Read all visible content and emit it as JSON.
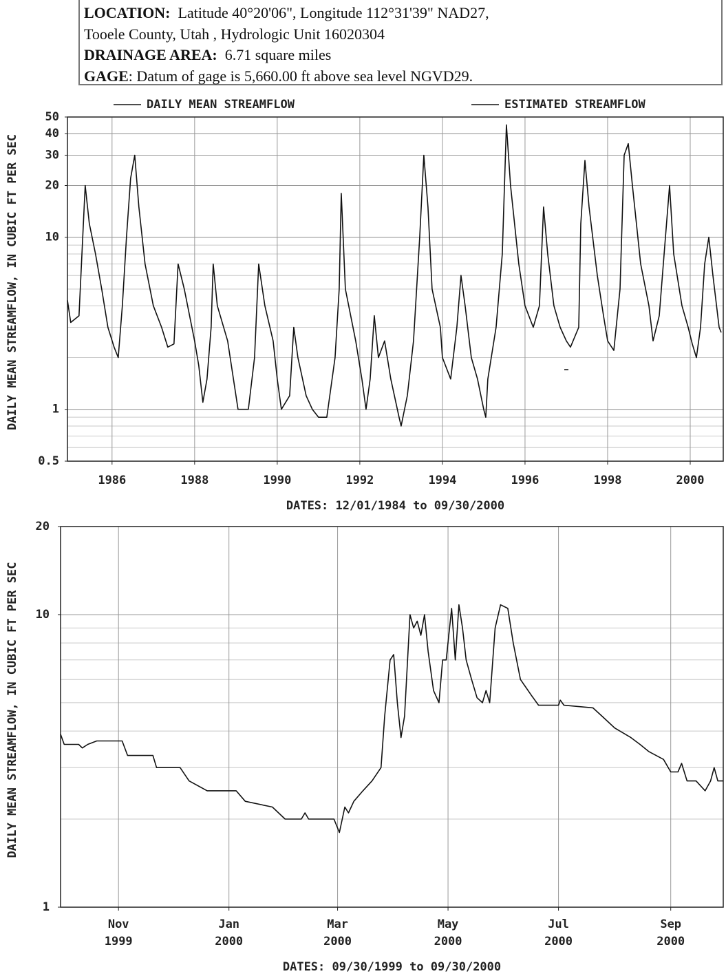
{
  "header": {
    "location_label": "LOCATION:",
    "location": "Latitude 40°20'06\", Longitude 112°31'39\" NAD27,",
    "location_cont": "Tooele County, Utah , Hydrologic Unit 16020304",
    "drainage_label": "DRAINAGE AREA:",
    "drainage": "6.71 square miles",
    "gage_label": "GAGE",
    "gage": ": Datum of gage is 5,660.00 ft above sea level NGVD29."
  },
  "chart_data": [
    {
      "type": "line",
      "y_label": "DAILY MEAN STREAMFLOW, IN CUBIC FT PER SEC",
      "x_label": "DATES: 12/01/1984 to 09/30/2000",
      "log_y": true,
      "grid": true,
      "legend": "top",
      "xlim": [
        1984.92,
        2000.8
      ],
      "xticks": [
        1986,
        1988,
        1990,
        1992,
        1994,
        1996,
        1998,
        2000
      ],
      "ylim": [
        0.5,
        50
      ],
      "yticks": [
        0.5,
        1,
        10,
        20,
        30,
        40,
        50
      ],
      "series": [
        {
          "name": "DAILY MEAN STREAMFLOW",
          "color": "#111111",
          "x": [
            1984.92,
            1985.0,
            1985.2,
            1985.35,
            1985.45,
            1985.6,
            1985.75,
            1985.9,
            1986.05,
            1986.15,
            1986.25,
            1986.35,
            1986.45,
            1986.55,
            1986.65,
            1986.8,
            1987.0,
            1987.2,
            1987.35,
            1987.5,
            1987.6,
            1987.75,
            1988.0,
            1988.1,
            1988.2,
            1988.3,
            1988.4,
            1988.45,
            1988.55,
            1988.8,
            1989.0,
            1989.05,
            1989.3,
            1989.45,
            1989.55,
            1989.7,
            1989.9,
            1990.0,
            1990.1,
            1990.3,
            1990.4,
            1990.5,
            1990.7,
            1990.85,
            1991.0,
            1991.2,
            1991.4,
            1991.5,
            1991.55,
            1991.65,
            1991.9,
            1992.05,
            1992.15,
            1992.25,
            1992.35,
            1992.45,
            1992.6,
            1992.75,
            1992.95,
            1993.0,
            1993.15,
            1993.3,
            1993.45,
            1993.55,
            1993.65,
            1993.75,
            1993.95,
            1994.0,
            1994.2,
            1994.35,
            1994.45,
            1994.55,
            1994.7,
            1994.85,
            1995.0,
            1995.05,
            1995.1,
            1995.3,
            1995.45,
            1995.55,
            1995.65,
            1995.85,
            1996.0,
            1996.2,
            1996.35,
            1996.45,
            1996.55,
            1996.7,
            1996.85,
            1997.0,
            1997.1,
            1997.3,
            1997.35,
            1997.45,
            1997.55,
            1997.75,
            1997.9,
            1998.0,
            1998.15,
            1998.3,
            1998.4,
            1998.5,
            1998.6,
            1998.8,
            1999.0,
            1999.1,
            1999.25,
            1999.4,
            1999.5,
            1999.6,
            1999.8,
            1999.95,
            2000.05,
            2000.15,
            2000.25,
            2000.35,
            2000.45,
            2000.55,
            2000.7,
            2000.75
          ],
          "values": [
            4.3,
            3.2,
            3.5,
            20,
            12,
            8,
            5,
            3.0,
            2.3,
            2.0,
            4,
            10,
            22,
            30,
            15,
            7,
            4,
            3,
            2.3,
            2.4,
            7,
            5,
            2.5,
            1.8,
            1.1,
            1.5,
            3,
            7,
            4,
            2.5,
            1.2,
            1.0,
            1.0,
            2,
            7,
            4,
            2.5,
            1.5,
            1.0,
            1.2,
            3,
            2,
            1.2,
            1.0,
            0.9,
            0.9,
            2,
            5,
            18,
            5,
            2.5,
            1.5,
            1.0,
            1.5,
            3.5,
            2,
            2.5,
            1.5,
            0.9,
            0.8,
            1.2,
            2.5,
            10,
            30,
            15,
            5,
            3,
            2,
            1.5,
            3,
            6,
            4,
            2,
            1.5,
            1.0,
            0.9,
            1.5,
            3,
            8,
            45,
            20,
            7,
            4,
            3,
            4,
            15,
            8,
            4,
            3,
            2.5,
            2.3,
            3,
            12,
            28,
            15,
            6,
            3.5,
            2.5,
            2.2,
            5,
            30,
            35,
            20,
            7,
            4,
            2.5,
            3.5,
            10,
            20,
            8,
            4,
            3,
            2.4,
            2.0,
            3,
            7,
            10,
            6,
            3,
            2.8
          ]
        },
        {
          "name": "ESTIMATED STREAMFLOW",
          "color": "#111111",
          "x": [
            1996.95,
            1997.05
          ],
          "values": [
            1.7,
            1.7
          ]
        }
      ]
    },
    {
      "type": "line",
      "y_label": "DAILY MEAN STREAMFLOW, IN CUBIC FT PER SEC",
      "x_label": "DATES: 09/30/1999 to 09/30/2000",
      "log_y": true,
      "grid": true,
      "color": "#111111",
      "xlim": [
        "1999-09-30",
        "2000-09-30"
      ],
      "xticks": [
        {
          "value": "1999-11-01",
          "label": [
            "Nov",
            "1999"
          ]
        },
        {
          "value": "2000-01-01",
          "label": [
            "Jan",
            "2000"
          ]
        },
        {
          "value": "2000-03-01",
          "label": [
            "Mar",
            "2000"
          ]
        },
        {
          "value": "2000-05-01",
          "label": [
            "May",
            "2000"
          ]
        },
        {
          "value": "2000-07-01",
          "label": [
            "Jul",
            "2000"
          ]
        },
        {
          "value": "2000-09-01",
          "label": [
            "Sep",
            "2000"
          ]
        }
      ],
      "ylim": [
        1,
        20
      ],
      "yticks": [
        1,
        10,
        20
      ],
      "x": [
        "1999-09-30",
        "1999-10-02",
        "1999-10-10",
        "1999-10-12",
        "1999-10-15",
        "1999-10-20",
        "1999-10-28",
        "1999-11-03",
        "1999-11-06",
        "1999-11-20",
        "1999-11-22",
        "1999-12-05",
        "1999-12-10",
        "1999-12-20",
        "2000-01-05",
        "2000-01-10",
        "2000-01-25",
        "2000-02-01",
        "2000-02-10",
        "2000-02-12",
        "2000-02-14",
        "2000-02-28",
        "2000-03-02",
        "2000-03-05",
        "2000-03-07",
        "2000-03-10",
        "2000-03-15",
        "2000-03-20",
        "2000-03-25",
        "2000-03-27",
        "2000-03-30",
        "2000-04-01",
        "2000-04-03",
        "2000-04-05",
        "2000-04-07",
        "2000-04-10",
        "2000-04-12",
        "2000-04-14",
        "2000-04-16",
        "2000-04-18",
        "2000-04-20",
        "2000-04-23",
        "2000-04-26",
        "2000-04-28",
        "2000-04-30",
        "2000-05-03",
        "2000-05-05",
        "2000-05-07",
        "2000-05-09",
        "2000-05-11",
        "2000-05-14",
        "2000-05-17",
        "2000-05-20",
        "2000-05-22",
        "2000-05-24",
        "2000-05-27",
        "2000-05-30",
        "2000-06-03",
        "2000-06-06",
        "2000-06-10",
        "2000-06-16",
        "2000-06-20",
        "2000-07-01",
        "2000-07-02",
        "2000-07-04",
        "2000-07-20",
        "2000-07-25",
        "2000-08-01",
        "2000-08-10",
        "2000-08-15",
        "2000-08-20",
        "2000-08-28",
        "2000-09-01",
        "2000-09-05",
        "2000-09-07",
        "2000-09-10",
        "2000-09-15",
        "2000-09-20",
        "2000-09-23",
        "2000-09-25",
        "2000-09-27",
        "2000-09-30"
      ],
      "values": [
        3.9,
        3.6,
        3.6,
        3.5,
        3.6,
        3.7,
        3.7,
        3.7,
        3.3,
        3.3,
        3.0,
        3.0,
        2.7,
        2.5,
        2.5,
        2.3,
        2.2,
        2.0,
        2.0,
        2.1,
        2.0,
        2.0,
        1.8,
        2.2,
        2.1,
        2.3,
        2.5,
        2.7,
        3.0,
        4.5,
        7,
        7.3,
        5,
        3.8,
        4.5,
        10,
        9,
        9.5,
        8.5,
        10,
        7.5,
        5.5,
        5,
        7,
        7,
        10.5,
        7,
        10.8,
        9,
        7,
        6,
        5.2,
        5.0,
        5.5,
        5,
        9,
        10.8,
        10.5,
        8,
        6,
        5.3,
        4.9,
        4.9,
        5.1,
        4.9,
        4.8,
        4.5,
        4.1,
        3.8,
        3.6,
        3.4,
        3.2,
        2.9,
        2.9,
        3.1,
        2.7,
        2.7,
        2.5,
        2.7,
        3.0,
        2.7,
        2.7
      ]
    }
  ]
}
